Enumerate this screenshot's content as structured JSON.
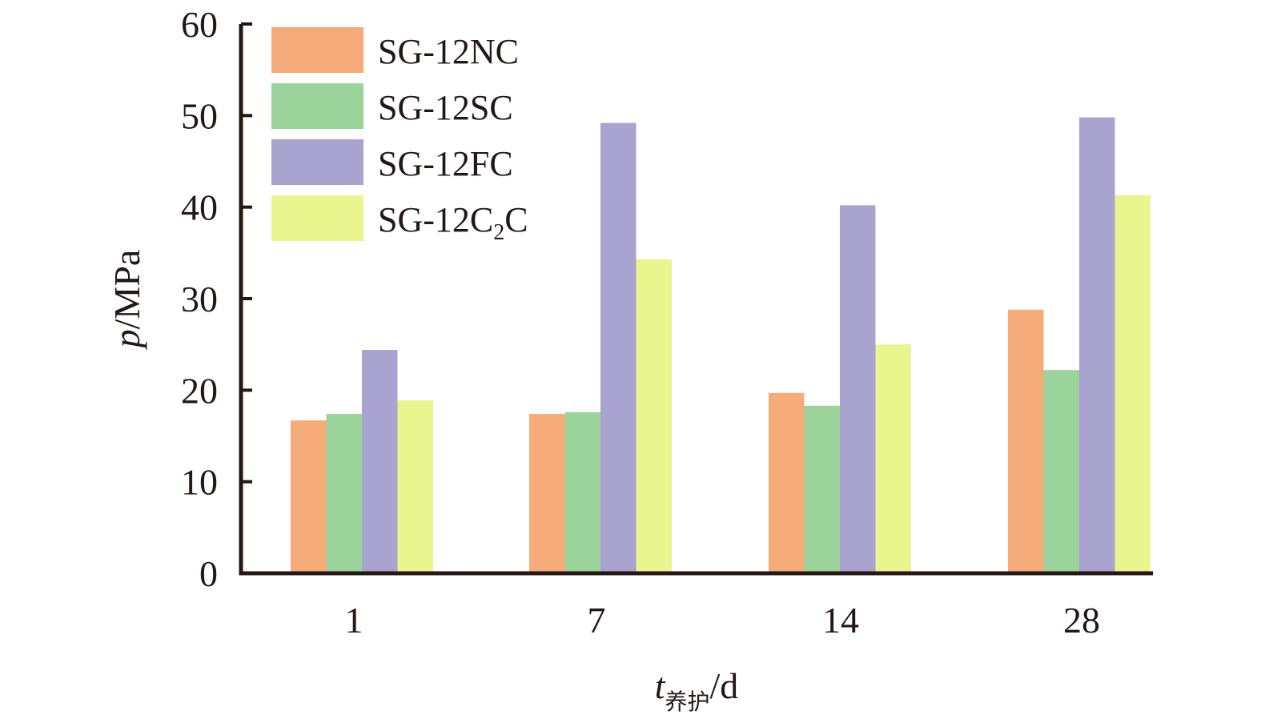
{
  "chart_data": {
    "type": "bar",
    "categories": [
      "1",
      "7",
      "14",
      "28"
    ],
    "series": [
      {
        "name": "SG-12NC",
        "values": [
          16.7,
          17.4,
          19.7,
          28.8
        ],
        "color": "#f6ab7b"
      },
      {
        "name": "SG-12SC",
        "values": [
          17.4,
          17.6,
          18.3,
          22.2
        ],
        "color": "#9cd39a"
      },
      {
        "name": "SG-12FC",
        "values": [
          24.4,
          49.2,
          40.2,
          49.8
        ],
        "color": "#a8a3cf"
      },
      {
        "name": "SG-12C₂C",
        "values": [
          18.9,
          34.3,
          25.0,
          41.3
        ],
        "color": "#e9f58e"
      }
    ],
    "legend": {
      "position": "top-left",
      "entries": [
        {
          "main": "SG-12NC",
          "sub": "",
          "tail": ""
        },
        {
          "main": "SG-12SC",
          "sub": "",
          "tail": ""
        },
        {
          "main": "SG-12FC",
          "sub": "",
          "tail": ""
        },
        {
          "main": "SG-12C",
          "sub": "2",
          "tail": "C"
        }
      ]
    },
    "ylim": [
      0,
      60
    ],
    "yticks": [
      "0",
      "10",
      "20",
      "30",
      "40",
      "50",
      "60"
    ],
    "ylabel": {
      "italic": "p",
      "rest": "/MPa"
    },
    "xlabel": {
      "italic": "t",
      "sub": "养护",
      "rest": "/d"
    },
    "grid": false,
    "axis_color": "#231815"
  }
}
